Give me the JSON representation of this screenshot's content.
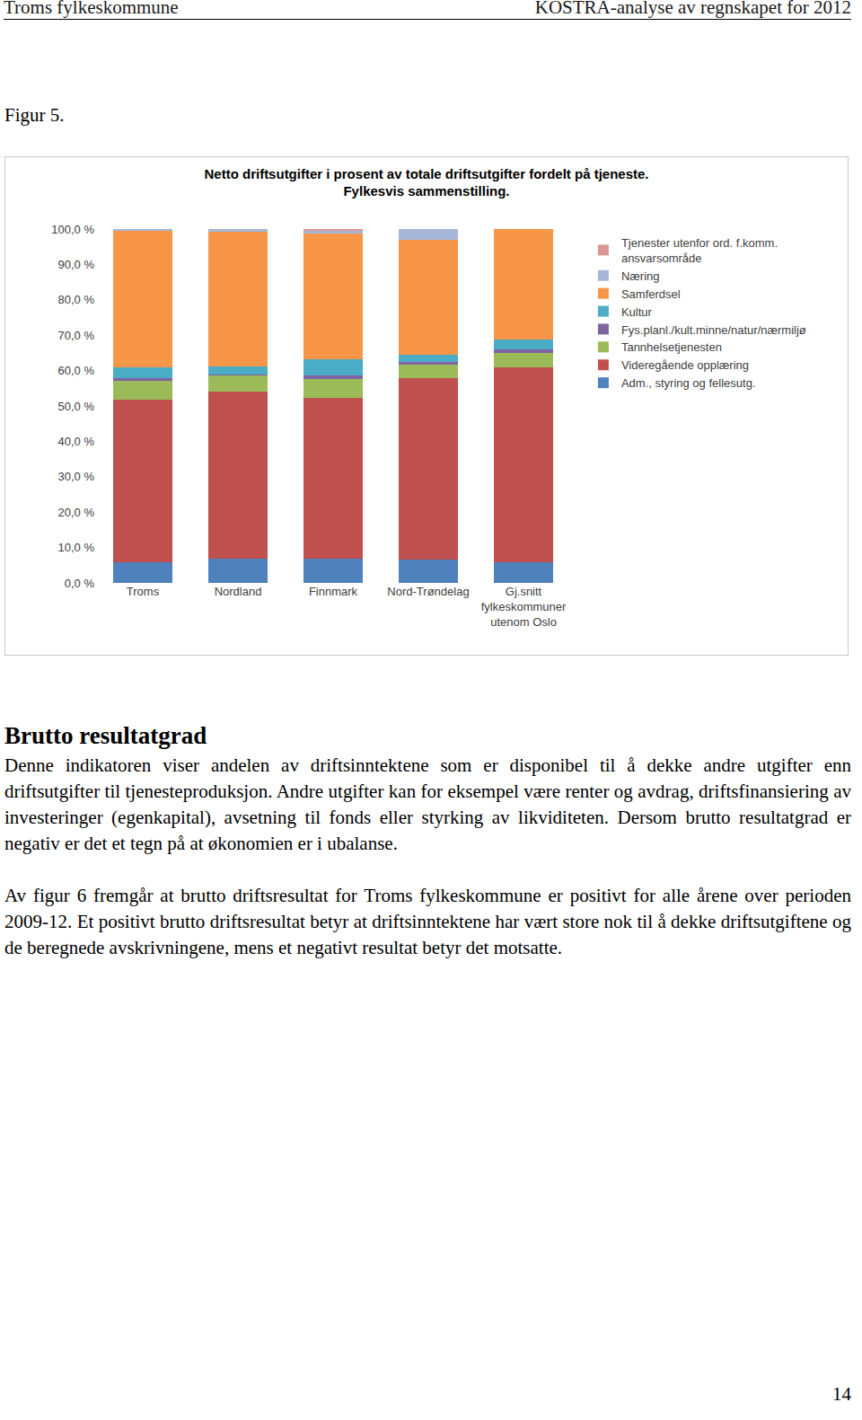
{
  "header": {
    "left": "Troms fylkeskommune",
    "right": "KOSTRA-analyse av regnskapet for 2012"
  },
  "figure_label": "Figur 5.",
  "chart_data": {
    "type": "bar",
    "stacked": true,
    "title": "Netto driftsutgifter i prosent av totale driftsutgifter fordelt på tjeneste.",
    "subtitle": "Fylkesvis sammenstilling.",
    "categories": [
      "Troms",
      "Nordland",
      "Finnmark",
      "Nord-Trøndelag",
      "Gj.snitt fylkeskommuner utenom Oslo"
    ],
    "series": [
      {
        "name": "Adm., styring og fellesutg.",
        "color": "#4f81bd",
        "values": [
          5.9,
          6.9,
          6.9,
          6.6,
          5.9
        ]
      },
      {
        "name": "Videregående opplæring",
        "color": "#c0504d",
        "values": [
          46.0,
          47.1,
          45.3,
          51.2,
          55.0
        ]
      },
      {
        "name": "Tannhelsetjenesten",
        "color": "#9bbb59",
        "values": [
          5.1,
          4.6,
          5.3,
          3.8,
          4.1
        ]
      },
      {
        "name": "Fys.planl./kult.minne/natur/nærmiljø",
        "color": "#8064a2",
        "values": [
          0.8,
          0.2,
          1.1,
          0.8,
          1.0
        ]
      },
      {
        "name": "Kultur",
        "color": "#4bacc6",
        "values": [
          3.1,
          2.3,
          4.6,
          2.1,
          2.8
        ]
      },
      {
        "name": "Samferdsel",
        "color": "#f79646",
        "values": [
          38.7,
          38.1,
          35.5,
          32.4,
          31.2
        ]
      },
      {
        "name": "Næring",
        "color": "#a5b6d9",
        "values": [
          0.3,
          0.7,
          0.9,
          3.0,
          0.0
        ]
      },
      {
        "name": "Tjenester utenfor ord. f.komm. ansvarsområde",
        "color": "#d99694",
        "values": [
          0.1,
          0.1,
          0.4,
          0.1,
          0.0
        ]
      }
    ],
    "ylim": [
      0,
      100
    ],
    "yticks": [
      {
        "value": 0,
        "label": "0,0 %"
      },
      {
        "value": 10,
        "label": "10,0 %"
      },
      {
        "value": 20,
        "label": "20,0 %"
      },
      {
        "value": 30,
        "label": "30,0 %"
      },
      {
        "value": 40,
        "label": "40,0 %"
      },
      {
        "value": 50,
        "label": "50,0 %"
      },
      {
        "value": 60,
        "label": "60,0 %"
      },
      {
        "value": 70,
        "label": "70,0 %"
      },
      {
        "value": 80,
        "label": "80,0 %"
      },
      {
        "value": 90,
        "label": "90,0 %"
      },
      {
        "value": 100,
        "label": "100,0 %"
      }
    ],
    "grid": false,
    "legend": "right"
  },
  "section": {
    "heading": "Brutto resultatgrad",
    "paragraphs": [
      "Denne indikatoren viser andelen av driftsinntektene som er disponibel til å dekke andre utgifter enn driftsutgifter til tjenesteproduksjon. Andre utgifter kan for eksempel være renter og avdrag, driftsfinansiering av investeringer (egenkapital), avsetning til fonds eller styrking av likviditeten. Dersom brutto resultatgrad er negativ er det et tegn på at økonomien er i ubalanse.",
      "Av figur 6 fremgår at brutto driftsresultat for Troms fylkeskommune er positivt for alle årene over perioden 2009-12. Et positivt brutto driftsresultat betyr at driftsinntektene har vært store nok til å dekke driftsutgiftene og de beregnede avskrivningene, mens et negativt resultat betyr det motsatte."
    ]
  },
  "page_number": 14
}
